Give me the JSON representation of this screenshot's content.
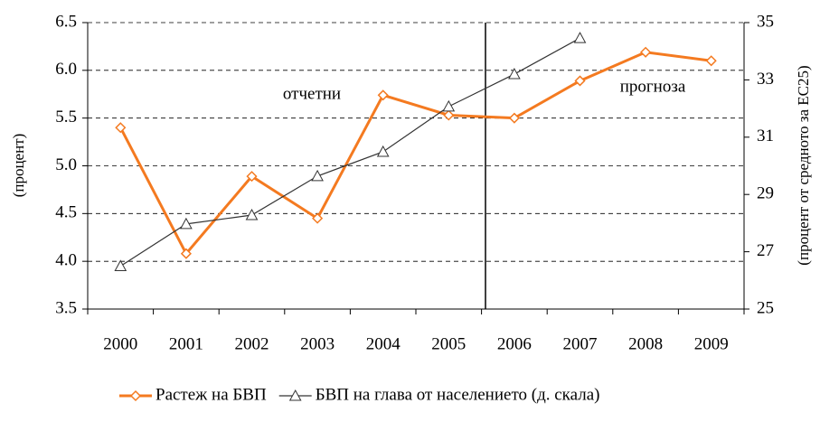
{
  "chart_data": {
    "type": "line",
    "categories": [
      "2000",
      "2001",
      "2002",
      "2003",
      "2004",
      "2005",
      "2006",
      "2007",
      "2008",
      "2009"
    ],
    "series": [
      {
        "name": "Растеж на БВП",
        "color": "#f47a20",
        "marker": "diamond",
        "values": [
          5.4,
          4.08,
          4.89,
          4.45,
          5.74,
          5.53,
          5.5,
          5.89,
          6.19,
          6.1
        ]
      },
      {
        "name": "БВП на глава от населението (д. скала)",
        "color": "#333333",
        "marker": "triangle",
        "axis": "y2",
        "values": [
          26.5,
          27.97,
          28.28,
          29.64,
          30.49,
          32.07,
          33.2,
          34.46,
          null,
          null
        ]
      }
    ],
    "ylabel": "(процент)",
    "y2label": "(процент от средното за ЕС25)",
    "ylim": [
      3.5,
      6.5
    ],
    "yticks": [
      3.5,
      4.0,
      4.5,
      5.0,
      5.5,
      6.0,
      6.5
    ],
    "y2lim": [
      25,
      35
    ],
    "y2ticks": [
      25,
      27,
      29,
      31,
      33,
      35
    ],
    "yticklabels": [
      "3.5",
      "4.0",
      "4.5",
      "5.0",
      "5.5",
      "6.0",
      "6.5"
    ],
    "annotations": [
      "отчетни",
      "прогноза"
    ],
    "grid": true,
    "legend": "bottom"
  }
}
